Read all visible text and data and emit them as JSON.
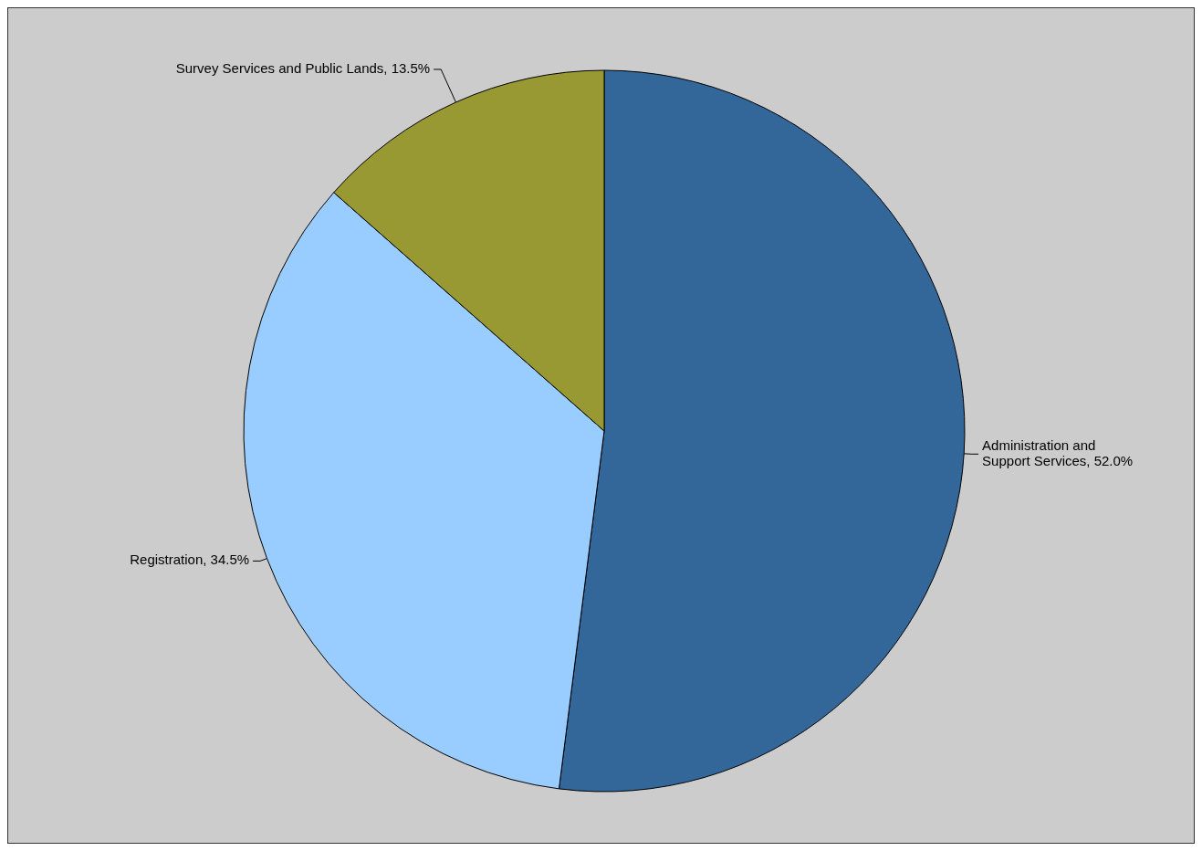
{
  "chart_data": {
    "type": "pie",
    "categories": [
      "Administration and Support Services",
      "Registration",
      "Survey Services and Public Lands"
    ],
    "values": [
      52.0,
      34.5,
      13.5
    ],
    "colors": [
      "#336699",
      "#99ccff",
      "#999933"
    ],
    "value_labels": [
      "52.0%",
      "34.5%",
      "13.5%"
    ]
  }
}
